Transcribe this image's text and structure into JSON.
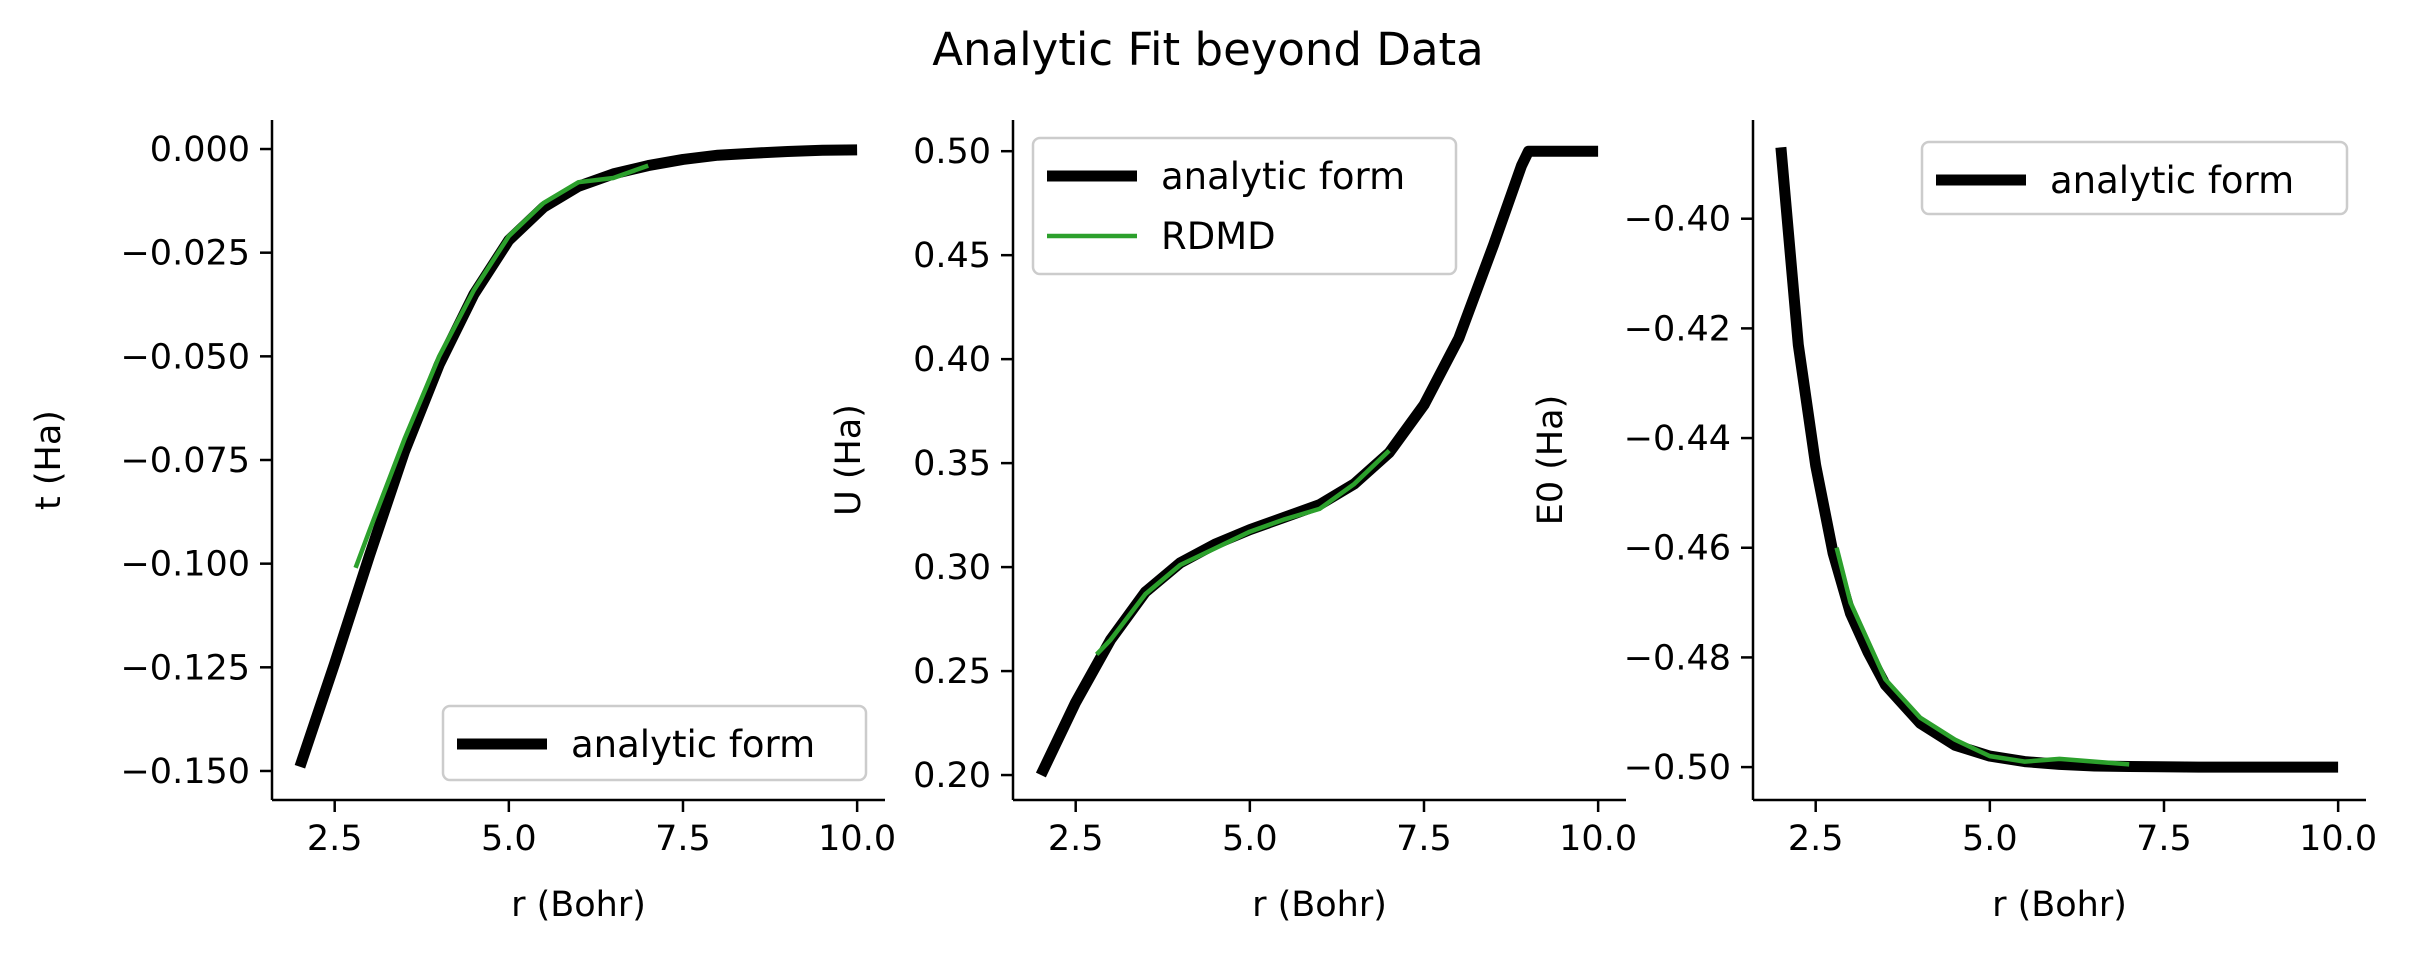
{
  "figure": {
    "title": "Analytic Fit beyond Data"
  },
  "colors": {
    "analytic": "#000000",
    "rdmd": "#2ca02c",
    "axes": "#000000"
  },
  "chart_data": [
    {
      "type": "line",
      "xlabel": "r (Bohr)",
      "ylabel": "t (Ha)",
      "xlim": [
        1.6,
        10.4
      ],
      "ylim": [
        -0.157,
        0.007
      ],
      "xticks": [
        2.5,
        5.0,
        7.5,
        10.0
      ],
      "xtick_labels": [
        "2.5",
        "5.0",
        "7.5",
        "10.0"
      ],
      "yticks": [
        0.0,
        -0.025,
        -0.05,
        -0.075,
        -0.1,
        -0.125,
        -0.15
      ],
      "ytick_labels": [
        "0.000",
        "−0.025",
        "−0.050",
        "−0.075",
        "−0.100",
        "−0.125",
        "−0.150"
      ],
      "legend": {
        "position": "lower-right",
        "entries": [
          "analytic form"
        ]
      },
      "grid": false,
      "series": [
        {
          "name": "analytic form",
          "color": "#000000",
          "x": [
            2.0,
            2.5,
            3.0,
            3.5,
            4.0,
            4.5,
            5.0,
            5.5,
            6.0,
            6.5,
            7.0,
            7.5,
            8.0,
            8.5,
            9.0,
            9.5,
            10.0
          ],
          "y": [
            -0.149,
            -0.124,
            -0.098,
            -0.073,
            -0.052,
            -0.035,
            -0.022,
            -0.014,
            -0.009,
            -0.006,
            -0.004,
            -0.0025,
            -0.0015,
            -0.001,
            -0.0006,
            -0.0003,
            -0.0002
          ]
        },
        {
          "name": "RDMD",
          "color": "#2ca02c",
          "x": [
            2.8,
            3.0,
            3.5,
            4.0,
            4.5,
            5.0,
            5.5,
            6.0,
            6.5,
            7.0
          ],
          "y": [
            -0.101,
            -0.092,
            -0.07,
            -0.05,
            -0.034,
            -0.021,
            -0.013,
            -0.008,
            -0.007,
            -0.004
          ]
        }
      ]
    },
    {
      "type": "line",
      "xlabel": "r (Bohr)",
      "ylabel": "U (Ha)",
      "xlim": [
        1.6,
        10.4
      ],
      "ylim": [
        0.188,
        0.515
      ],
      "xticks": [
        2.5,
        5.0,
        7.5,
        10.0
      ],
      "xtick_labels": [
        "2.5",
        "5.0",
        "7.5",
        "10.0"
      ],
      "yticks": [
        0.2,
        0.25,
        0.3,
        0.35,
        0.4,
        0.45,
        0.5
      ],
      "ytick_labels": [
        "0.20",
        "0.25",
        "0.30",
        "0.35",
        "0.40",
        "0.45",
        "0.50"
      ],
      "legend": {
        "position": "upper-left",
        "entries": [
          "analytic form",
          "RDMD"
        ]
      },
      "grid": false,
      "series": [
        {
          "name": "analytic form",
          "color": "#000000",
          "x": [
            2.0,
            2.5,
            3.0,
            3.5,
            4.0,
            4.5,
            5.0,
            5.5,
            6.0,
            6.5,
            7.0,
            7.5,
            8.0,
            8.5,
            8.9,
            9.0,
            9.5,
            10.0
          ],
          "y": [
            0.2,
            0.235,
            0.265,
            0.288,
            0.302,
            0.311,
            0.318,
            0.324,
            0.33,
            0.34,
            0.355,
            0.378,
            0.41,
            0.455,
            0.493,
            0.5,
            0.5,
            0.5
          ]
        },
        {
          "name": "RDMD",
          "color": "#2ca02c",
          "x": [
            2.8,
            3.0,
            3.5,
            4.0,
            4.5,
            5.0,
            5.5,
            6.0,
            6.5,
            7.0
          ],
          "y": [
            0.258,
            0.265,
            0.287,
            0.301,
            0.309,
            0.317,
            0.323,
            0.328,
            0.34,
            0.356
          ]
        }
      ]
    },
    {
      "type": "line",
      "xlabel": "r (Bohr)",
      "ylabel": "E0 (Ha)",
      "xlim": [
        1.6,
        10.4
      ],
      "ylim": [
        -0.506,
        -0.382
      ],
      "xticks": [
        2.5,
        5.0,
        7.5,
        10.0
      ],
      "xtick_labels": [
        "2.5",
        "5.0",
        "7.5",
        "10.0"
      ],
      "yticks": [
        -0.4,
        -0.42,
        -0.44,
        -0.46,
        -0.48,
        -0.5
      ],
      "ytick_labels": [
        "−0.40",
        "−0.42",
        "−0.44",
        "−0.46",
        "−0.48",
        "−0.50"
      ],
      "legend": {
        "position": "upper-right",
        "entries": [
          "analytic form"
        ]
      },
      "grid": false,
      "series": [
        {
          "name": "analytic form",
          "color": "#000000",
          "x": [
            2.0,
            2.25,
            2.5,
            2.75,
            3.0,
            3.25,
            3.5,
            4.0,
            4.5,
            5.0,
            5.5,
            6.0,
            6.5,
            7.0,
            8.0,
            9.0,
            10.0
          ],
          "y": [
            -0.387,
            -0.423,
            -0.445,
            -0.461,
            -0.472,
            -0.479,
            -0.485,
            -0.492,
            -0.496,
            -0.498,
            -0.499,
            -0.4995,
            -0.4998,
            -0.4999,
            -0.5,
            -0.5,
            -0.5
          ]
        },
        {
          "name": "RDMD",
          "color": "#2ca02c",
          "x": [
            2.8,
            3.0,
            3.5,
            4.0,
            4.5,
            5.0,
            5.5,
            6.0,
            6.5,
            7.0
          ],
          "y": [
            -0.46,
            -0.47,
            -0.484,
            -0.491,
            -0.495,
            -0.498,
            -0.499,
            -0.4985,
            -0.499,
            -0.4995
          ]
        }
      ]
    }
  ]
}
